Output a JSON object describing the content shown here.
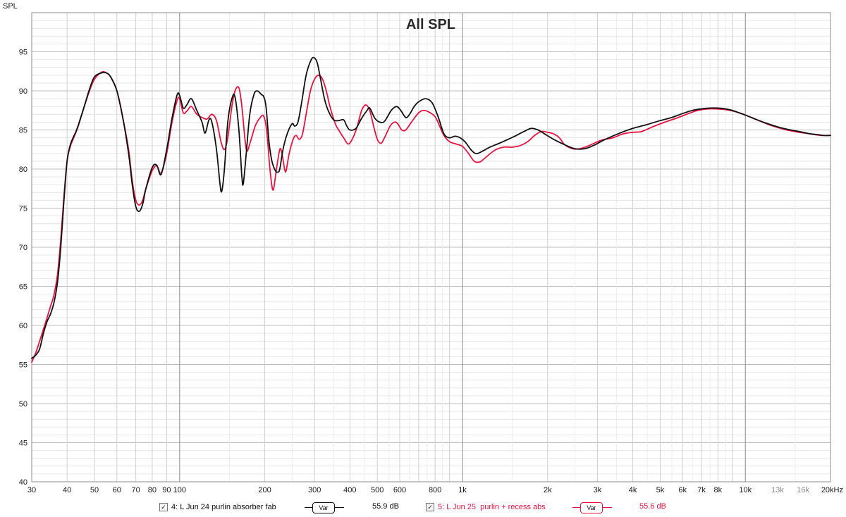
{
  "chart_data": {
    "type": "line",
    "title": "All SPL",
    "ylabel": "SPL",
    "xlabel": "",
    "x_scale": "log",
    "xlim": [
      30,
      20000
    ],
    "ylim": [
      40,
      100
    ],
    "grid": true,
    "legend_position": "bottom",
    "y_ticks": [
      40,
      45,
      50,
      55,
      60,
      65,
      70,
      75,
      80,
      85,
      90,
      95
    ],
    "x_ticks": [
      {
        "value": 30,
        "label": "30"
      },
      {
        "value": 40,
        "label": "40"
      },
      {
        "value": 50,
        "label": "50"
      },
      {
        "value": 60,
        "label": "60"
      },
      {
        "value": 70,
        "label": "70"
      },
      {
        "value": 80,
        "label": "80"
      },
      {
        "value": 90,
        "label": "90"
      },
      {
        "value": 100,
        "label": "100"
      },
      {
        "value": 200,
        "label": "200"
      },
      {
        "value": 300,
        "label": "300"
      },
      {
        "value": 400,
        "label": "400"
      },
      {
        "value": 500,
        "label": "500"
      },
      {
        "value": 600,
        "label": "600"
      },
      {
        "value": 800,
        "label": "800"
      },
      {
        "value": 1000,
        "label": "1k"
      },
      {
        "value": 2000,
        "label": "2k"
      },
      {
        "value": 3000,
        "label": "3k"
      },
      {
        "value": 4000,
        "label": "4k"
      },
      {
        "value": 5000,
        "label": "5k"
      },
      {
        "value": 6000,
        "label": "6k"
      },
      {
        "value": 7000,
        "label": "7k"
      },
      {
        "value": 8000,
        "label": "8k"
      },
      {
        "value": 10000,
        "label": "10k"
      },
      {
        "value": 13000,
        "label": "13k",
        "muted": true
      },
      {
        "value": 16000,
        "label": "16k",
        "muted": true
      },
      {
        "value": 20000,
        "label": "20kHz"
      }
    ],
    "series": [
      {
        "name": "4: L Jun 24 purlin absorber fab",
        "color": "#111111",
        "level": "55.9 dB",
        "points": [
          [
            30,
            55.8
          ],
          [
            31,
            56.2
          ],
          [
            32,
            57.0
          ],
          [
            33,
            59.0
          ],
          [
            34,
            60.5
          ],
          [
            35,
            61.5
          ],
          [
            36,
            63.0
          ],
          [
            37,
            65.5
          ],
          [
            38,
            70.0
          ],
          [
            39,
            76.0
          ],
          [
            40,
            81.0
          ],
          [
            41,
            83.0
          ],
          [
            42,
            84.0
          ],
          [
            43,
            84.8
          ],
          [
            44,
            85.8
          ],
          [
            46,
            88.0
          ],
          [
            48,
            90.2
          ],
          [
            50,
            91.8
          ],
          [
            53,
            92.3
          ],
          [
            55,
            92.3
          ],
          [
            57,
            91.8
          ],
          [
            60,
            90.0
          ],
          [
            63,
            86.5
          ],
          [
            66,
            82.0
          ],
          [
            68,
            78.0
          ],
          [
            70,
            75.2
          ],
          [
            72,
            74.6
          ],
          [
            74,
            75.5
          ],
          [
            76,
            77.5
          ],
          [
            80,
            80.2
          ],
          [
            83,
            80.5
          ],
          [
            86,
            79.3
          ],
          [
            90,
            82.5
          ],
          [
            94,
            86.5
          ],
          [
            98,
            89.5
          ],
          [
            100,
            89.4
          ],
          [
            103,
            87.8
          ],
          [
            106,
            88.2
          ],
          [
            110,
            89.0
          ],
          [
            115,
            87.5
          ],
          [
            120,
            86.0
          ],
          [
            123,
            84.6
          ],
          [
            127,
            86.3
          ],
          [
            130,
            86.0
          ],
          [
            135,
            82.5
          ],
          [
            139,
            78.0
          ],
          [
            141,
            77.2
          ],
          [
            144,
            80.0
          ],
          [
            148,
            86.0
          ],
          [
            153,
            89.0
          ],
          [
            157,
            89.2
          ],
          [
            162,
            85.0
          ],
          [
            166,
            79.0
          ],
          [
            168,
            78.2
          ],
          [
            172,
            82.0
          ],
          [
            177,
            87.0
          ],
          [
            183,
            89.5
          ],
          [
            188,
            90.0
          ],
          [
            195,
            89.5
          ],
          [
            198,
            89.3
          ],
          [
            202,
            88.0
          ],
          [
            207,
            83.5
          ],
          [
            212,
            81.0
          ],
          [
            218,
            79.8
          ],
          [
            222,
            79.6
          ],
          [
            226,
            80.0
          ],
          [
            232,
            82.5
          ],
          [
            240,
            84.5
          ],
          [
            250,
            85.8
          ],
          [
            255,
            85.5
          ],
          [
            262,
            86.0
          ],
          [
            270,
            88.5
          ],
          [
            280,
            92.0
          ],
          [
            292,
            94.0
          ],
          [
            300,
            94.2
          ],
          [
            307,
            93.5
          ],
          [
            315,
            91.5
          ],
          [
            325,
            89.0
          ],
          [
            335,
            87.5
          ],
          [
            350,
            86.3
          ],
          [
            365,
            86.2
          ],
          [
            380,
            86.3
          ],
          [
            390,
            85.5
          ],
          [
            400,
            85.0
          ],
          [
            420,
            85.2
          ],
          [
            440,
            86.5
          ],
          [
            460,
            87.5
          ],
          [
            470,
            87.8
          ],
          [
            490,
            86.5
          ],
          [
            510,
            86.0
          ],
          [
            530,
            86.1
          ],
          [
            560,
            87.5
          ],
          [
            585,
            88.0
          ],
          [
            605,
            87.5
          ],
          [
            630,
            86.6
          ],
          [
            650,
            87.0
          ],
          [
            675,
            88.0
          ],
          [
            700,
            88.6
          ],
          [
            740,
            89.0
          ],
          [
            780,
            88.5
          ],
          [
            820,
            86.7
          ],
          [
            860,
            84.5
          ],
          [
            900,
            84.0
          ],
          [
            940,
            84.2
          ],
          [
            980,
            84.0
          ],
          [
            1020,
            83.5
          ],
          [
            1070,
            82.5
          ],
          [
            1110,
            82.0
          ],
          [
            1150,
            82.1
          ],
          [
            1250,
            82.8
          ],
          [
            1350,
            83.3
          ],
          [
            1450,
            83.8
          ],
          [
            1550,
            84.3
          ],
          [
            1650,
            84.8
          ],
          [
            1750,
            85.2
          ],
          [
            1850,
            85.0
          ],
          [
            1950,
            84.5
          ],
          [
            2100,
            83.8
          ],
          [
            2300,
            83.1
          ],
          [
            2500,
            82.6
          ],
          [
            2700,
            82.6
          ],
          [
            2900,
            83.0
          ],
          [
            3200,
            83.8
          ],
          [
            3600,
            84.6
          ],
          [
            4000,
            85.2
          ],
          [
            4500,
            85.7
          ],
          [
            5000,
            86.2
          ],
          [
            5500,
            86.6
          ],
          [
            6000,
            87.1
          ],
          [
            6500,
            87.5
          ],
          [
            7000,
            87.7
          ],
          [
            7500,
            87.8
          ],
          [
            8000,
            87.8
          ],
          [
            8500,
            87.7
          ],
          [
            9000,
            87.5
          ],
          [
            10000,
            86.9
          ],
          [
            11000,
            86.3
          ],
          [
            12000,
            85.8
          ],
          [
            13000,
            85.4
          ],
          [
            14000,
            85.1
          ],
          [
            15000,
            84.9
          ],
          [
            16000,
            84.7
          ],
          [
            17000,
            84.5
          ],
          [
            18000,
            84.4
          ],
          [
            19000,
            84.3
          ],
          [
            20000,
            84.3
          ]
        ]
      },
      {
        "name": "5: L Jun 25  purlin + recess abs",
        "color": "#e8133f",
        "level": "55.6 dB",
        "points": [
          [
            30,
            55.3
          ],
          [
            31,
            56.5
          ],
          [
            32,
            58.0
          ],
          [
            33,
            59.5
          ],
          [
            34,
            61.0
          ],
          [
            35,
            62.5
          ],
          [
            36,
            64.0
          ],
          [
            37,
            66.5
          ],
          [
            38,
            71.0
          ],
          [
            39,
            76.5
          ],
          [
            40,
            81.0
          ],
          [
            41,
            82.8
          ],
          [
            42,
            83.8
          ],
          [
            43,
            84.7
          ],
          [
            44,
            85.7
          ],
          [
            46,
            88.0
          ],
          [
            48,
            90.0
          ],
          [
            50,
            91.5
          ],
          [
            53,
            92.4
          ],
          [
            55,
            92.3
          ],
          [
            57,
            91.8
          ],
          [
            60,
            90.0
          ],
          [
            63,
            86.5
          ],
          [
            66,
            82.5
          ],
          [
            68,
            78.5
          ],
          [
            70,
            76.0
          ],
          [
            72,
            75.4
          ],
          [
            74,
            76.0
          ],
          [
            76,
            77.5
          ],
          [
            80,
            79.8
          ],
          [
            83,
            80.4
          ],
          [
            86,
            79.5
          ],
          [
            90,
            82.0
          ],
          [
            94,
            86.0
          ],
          [
            98,
            88.8
          ],
          [
            100,
            89.0
          ],
          [
            103,
            87.2
          ],
          [
            106,
            87.4
          ],
          [
            110,
            88.0
          ],
          [
            115,
            87.0
          ],
          [
            120,
            86.6
          ],
          [
            125,
            86.4
          ],
          [
            130,
            87.0
          ],
          [
            135,
            86.2
          ],
          [
            140,
            83.5
          ],
          [
            144,
            82.5
          ],
          [
            148,
            84.0
          ],
          [
            153,
            88.0
          ],
          [
            157,
            90.0
          ],
          [
            162,
            90.4
          ],
          [
            166,
            88.0
          ],
          [
            170,
            84.0
          ],
          [
            173,
            82.3
          ],
          [
            178,
            83.5
          ],
          [
            185,
            85.5
          ],
          [
            192,
            86.5
          ],
          [
            198,
            86.8
          ],
          [
            203,
            85.0
          ],
          [
            208,
            80.5
          ],
          [
            212,
            77.8
          ],
          [
            215,
            77.5
          ],
          [
            220,
            80.0
          ],
          [
            226,
            82.5
          ],
          [
            230,
            82.0
          ],
          [
            235,
            80.0
          ],
          [
            238,
            79.8
          ],
          [
            244,
            82.0
          ],
          [
            252,
            83.8
          ],
          [
            258,
            84.3
          ],
          [
            265,
            83.8
          ],
          [
            272,
            84.5
          ],
          [
            280,
            87.0
          ],
          [
            290,
            90.0
          ],
          [
            300,
            91.5
          ],
          [
            310,
            92.0
          ],
          [
            320,
            91.5
          ],
          [
            330,
            90.0
          ],
          [
            340,
            88.0
          ],
          [
            355,
            85.8
          ],
          [
            365,
            85.0
          ],
          [
            380,
            84.0
          ],
          [
            395,
            83.2
          ],
          [
            410,
            84.0
          ],
          [
            425,
            85.5
          ],
          [
            440,
            87.5
          ],
          [
            455,
            88.2
          ],
          [
            470,
            87.5
          ],
          [
            485,
            85.5
          ],
          [
            500,
            83.8
          ],
          [
            515,
            83.3
          ],
          [
            530,
            84.0
          ],
          [
            555,
            85.5
          ],
          [
            575,
            86.0
          ],
          [
            590,
            85.8
          ],
          [
            610,
            85.0
          ],
          [
            630,
            85.0
          ],
          [
            660,
            86.0
          ],
          [
            700,
            87.2
          ],
          [
            730,
            87.5
          ],
          [
            760,
            87.3
          ],
          [
            800,
            86.7
          ],
          [
            830,
            85.5
          ],
          [
            860,
            84.3
          ],
          [
            900,
            83.5
          ],
          [
            950,
            83.2
          ],
          [
            1000,
            82.9
          ],
          [
            1050,
            82.0
          ],
          [
            1100,
            81.0
          ],
          [
            1150,
            80.9
          ],
          [
            1200,
            81.4
          ],
          [
            1300,
            82.4
          ],
          [
            1400,
            82.8
          ],
          [
            1500,
            82.8
          ],
          [
            1600,
            83.0
          ],
          [
            1700,
            83.5
          ],
          [
            1800,
            84.3
          ],
          [
            1900,
            84.8
          ],
          [
            2000,
            84.7
          ],
          [
            2100,
            84.5
          ],
          [
            2200,
            84.0
          ],
          [
            2300,
            83.1
          ],
          [
            2450,
            82.6
          ],
          [
            2600,
            82.6
          ],
          [
            2800,
            83.0
          ],
          [
            3100,
            83.7
          ],
          [
            3400,
            84.0
          ],
          [
            3700,
            84.5
          ],
          [
            4000,
            84.7
          ],
          [
            4300,
            84.8
          ],
          [
            4700,
            85.4
          ],
          [
            5200,
            86.0
          ],
          [
            5800,
            86.6
          ],
          [
            6300,
            87.1
          ],
          [
            6800,
            87.5
          ],
          [
            7500,
            87.7
          ],
          [
            8500,
            87.6
          ],
          [
            9500,
            87.2
          ],
          [
            10500,
            86.6
          ],
          [
            11500,
            86.0
          ],
          [
            12500,
            85.5
          ],
          [
            14000,
            85.0
          ],
          [
            15500,
            84.7
          ],
          [
            17000,
            84.5
          ],
          [
            18500,
            84.3
          ],
          [
            20000,
            84.3
          ]
        ]
      }
    ]
  }
}
